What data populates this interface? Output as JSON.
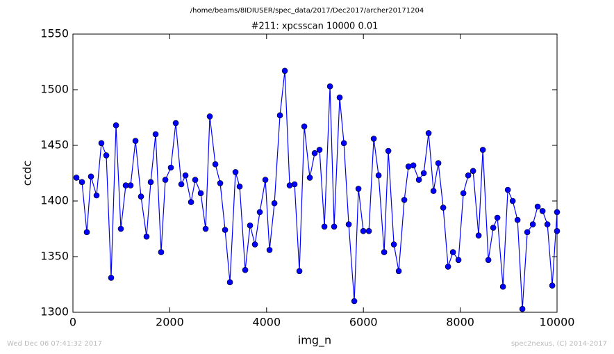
{
  "page_title": "/home/beams/8IDIUSER/spec_data/2017/Dec2017/archer20171204",
  "timestamp": "Wed Dec 06 07:41:32 2017",
  "credit": "spec2nexus, (C) 2014-2017",
  "chart_data": {
    "type": "line",
    "title": "#211: xpcsscan 10000 0.01",
    "x_label": "img_n",
    "y_label": "ccdc",
    "xlim": [
      0,
      10000
    ],
    "xticks": [
      0,
      2000,
      4000,
      6000,
      8000,
      10000
    ],
    "ylim": [
      1300,
      1550
    ],
    "yticks": [
      1300,
      1350,
      1400,
      1450,
      1500,
      1550
    ],
    "grid": false,
    "series": [
      {
        "color": "#0000ff",
        "x": [
          72,
          187,
          287,
          373,
          488,
          588,
          689,
          789,
          890,
          990,
          1091,
          1191,
          1292,
          1406,
          1521,
          1607,
          1708,
          1822,
          1909,
          2023,
          2124,
          2239,
          2325,
          2440,
          2526,
          2640,
          2741,
          2827,
          2942,
          3042,
          3143,
          3243,
          3358,
          3444,
          3559,
          3659,
          3760,
          3860,
          3975,
          4061,
          4162,
          4276,
          4377,
          4477,
          4578,
          4678,
          4779,
          4893,
          4994,
          5094,
          5195,
          5310,
          5396,
          5510,
          5597,
          5697,
          5812,
          5898,
          5998,
          6113,
          6214,
          6314,
          6429,
          6515,
          6630,
          6730,
          6845,
          6931,
          7032,
          7146,
          7247,
          7347,
          7448,
          7548,
          7649,
          7749,
          7850,
          7964,
          8065,
          8165,
          8266,
          8380,
          8467,
          8581,
          8682,
          8768,
          8883,
          8983,
          9084,
          9184,
          9284,
          9385,
          9500,
          9600,
          9701,
          9801,
          9901,
          10000,
          10000
        ],
        "values": [
          1421,
          1417,
          1372,
          1422,
          1405,
          1452,
          1441,
          1331,
          1468,
          1375,
          1414,
          1414,
          1454,
          1404,
          1368,
          1417,
          1460,
          1354,
          1419,
          1430,
          1470,
          1415,
          1423,
          1399,
          1419,
          1407,
          1375,
          1476,
          1433,
          1416,
          1374,
          1327,
          1426,
          1413,
          1338,
          1378,
          1361,
          1390,
          1419,
          1356,
          1398,
          1477,
          1517,
          1414,
          1415,
          1337,
          1467,
          1421,
          1443,
          1446,
          1377,
          1503,
          1377,
          1493,
          1452,
          1379,
          1310,
          1411,
          1373,
          1373,
          1456,
          1423,
          1354,
          1445,
          1361,
          1337,
          1401,
          1431,
          1432,
          1419,
          1425,
          1461,
          1409,
          1434,
          1394,
          1341,
          1354,
          1347,
          1407,
          1423,
          1427,
          1369,
          1446,
          1347,
          1376,
          1385,
          1323,
          1410,
          1400,
          1383,
          1303,
          1372,
          1379,
          1395,
          1391,
          1379,
          1324,
          1390,
          1373
        ]
      }
    ]
  }
}
